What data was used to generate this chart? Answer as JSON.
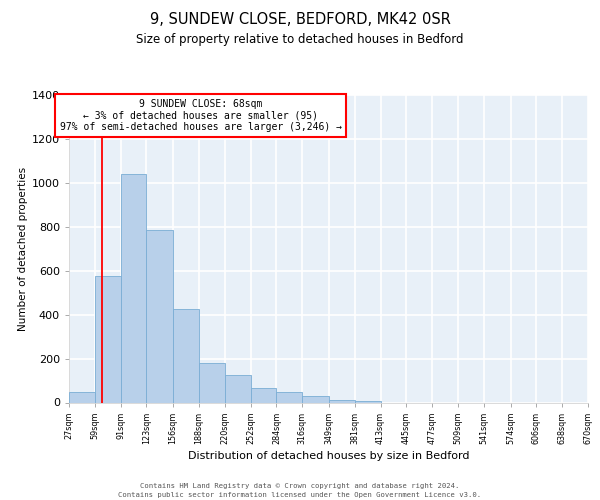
{
  "title": "9, SUNDEW CLOSE, BEDFORD, MK42 0SR",
  "subtitle": "Size of property relative to detached houses in Bedford",
  "xlabel": "Distribution of detached houses by size in Bedford",
  "ylabel": "Number of detached properties",
  "bar_values": [
    50,
    575,
    1040,
    785,
    425,
    178,
    125,
    65,
    50,
    28,
    12,
    8,
    0,
    0,
    0,
    0,
    0,
    0,
    0,
    0
  ],
  "categories": [
    "27sqm",
    "59sqm",
    "91sqm",
    "123sqm",
    "156sqm",
    "188sqm",
    "220sqm",
    "252sqm",
    "284sqm",
    "316sqm",
    "349sqm",
    "381sqm",
    "413sqm",
    "445sqm",
    "477sqm",
    "509sqm",
    "541sqm",
    "574sqm",
    "606sqm",
    "638sqm",
    "670sqm"
  ],
  "bar_color": "#b8d0ea",
  "bar_edge_color": "#7aadd4",
  "background_color": "#e8f0f8",
  "grid_color": "#ffffff",
  "ylim": [
    0,
    1400
  ],
  "yticks": [
    0,
    200,
    400,
    600,
    800,
    1000,
    1200,
    1400
  ],
  "annotation_text_line1": "9 SUNDEW CLOSE: 68sqm",
  "annotation_text_line2": "← 3% of detached houses are smaller (95)",
  "annotation_text_line3": "97% of semi-detached houses are larger (3,246) →",
  "footer_line1": "Contains HM Land Registry data © Crown copyright and database right 2024.",
  "footer_line2": "Contains public sector information licensed under the Open Government Licence v3.0.",
  "bin_edges": [
    27,
    59,
    91,
    123,
    156,
    188,
    220,
    252,
    284,
    316,
    349,
    381,
    413,
    445,
    477,
    509,
    541,
    574,
    606,
    638,
    670
  ],
  "red_line_x": 68
}
